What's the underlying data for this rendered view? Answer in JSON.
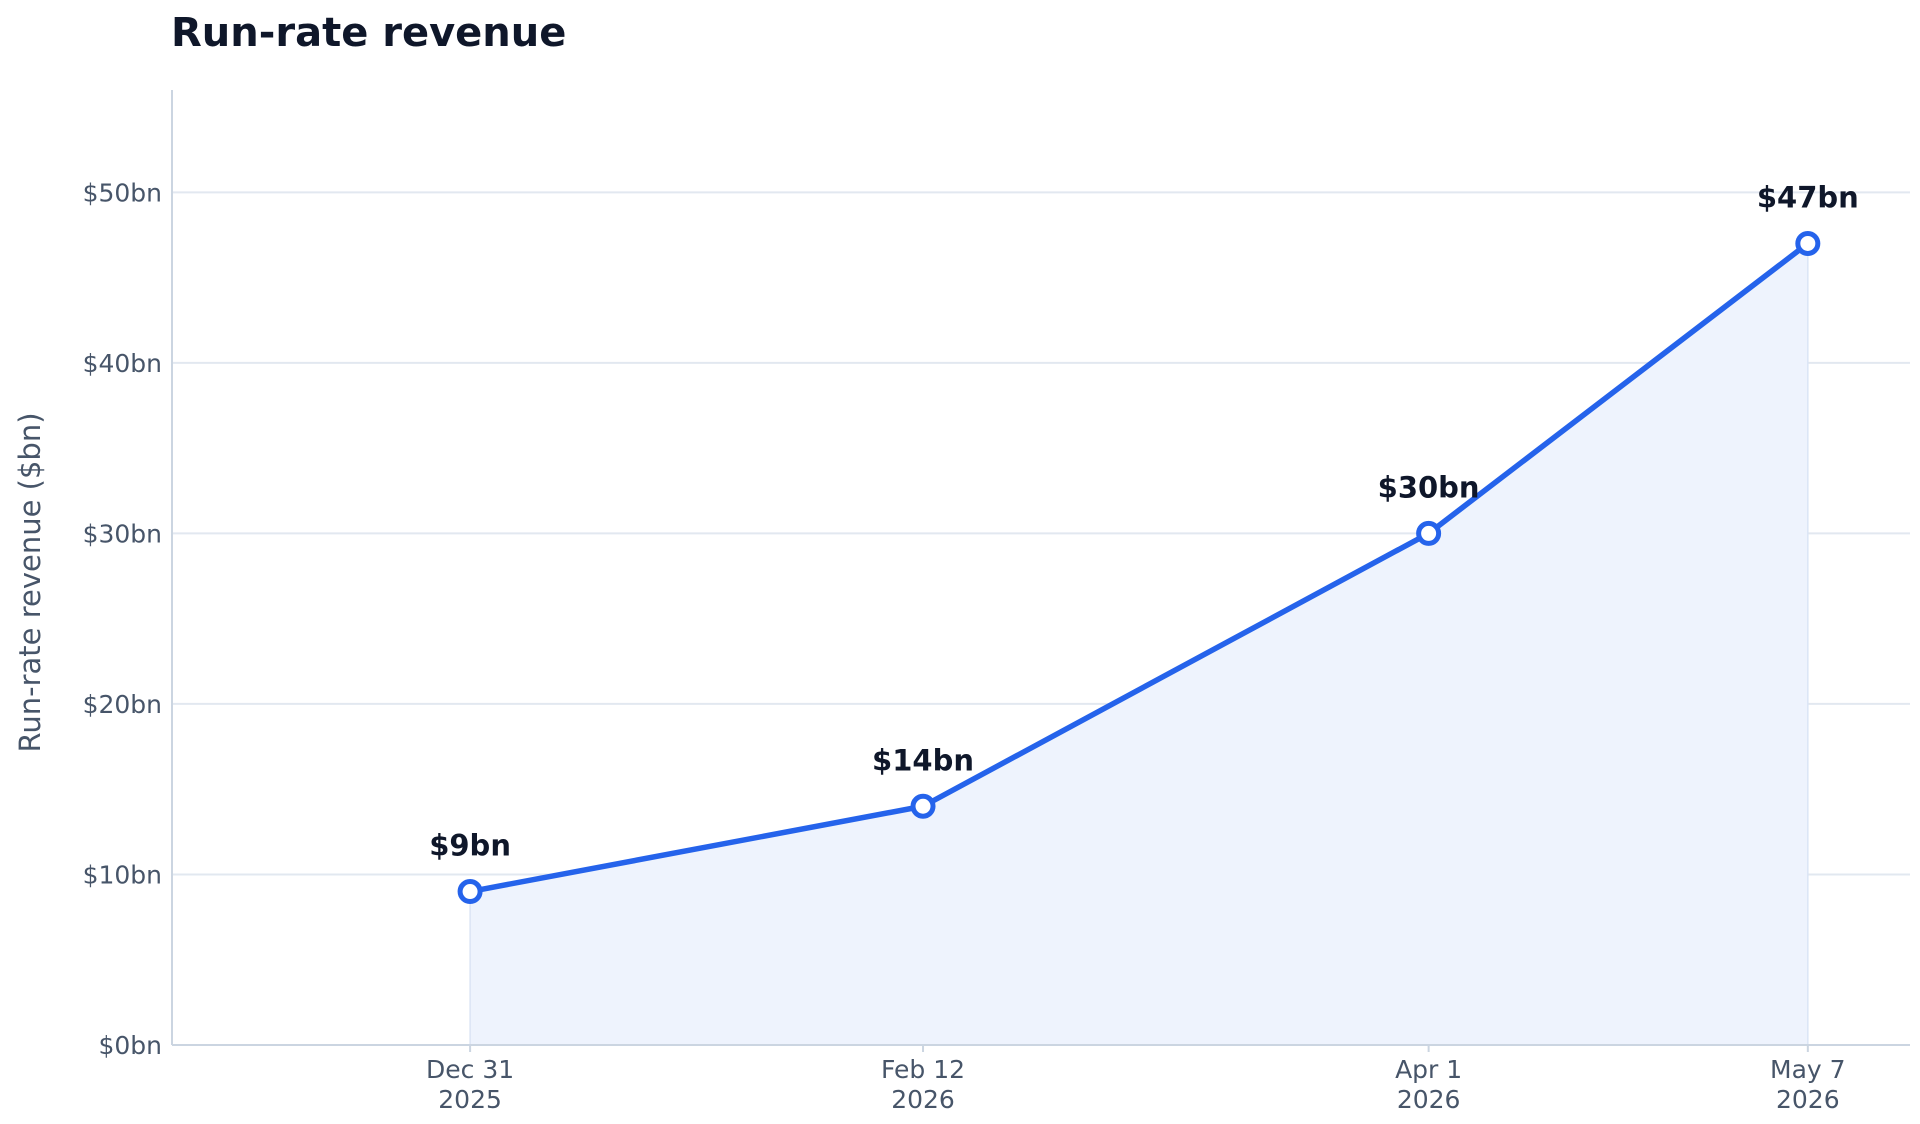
{
  "chart_data": {
    "type": "line",
    "title": "Run-rate revenue",
    "ylabel": "Run-rate revenue ($bn)",
    "xlabel": "",
    "x": [
      "2025-12-31",
      "2026-02-12",
      "2026-04-01",
      "2026-05-07"
    ],
    "x_tick_labels": [
      {
        "line1": "Dec 31",
        "line2": "2025"
      },
      {
        "line1": "Feb 12",
        "line2": "2026"
      },
      {
        "line1": "Apr 1",
        "line2": "2026"
      },
      {
        "line1": "May 7",
        "line2": "2026"
      }
    ],
    "series": [
      {
        "values": [
          9,
          14,
          30,
          47
        ],
        "color": "#2563eb",
        "fill": "#eef3fd"
      }
    ],
    "data_labels": [
      "$9bn",
      "$14bn",
      "$30bn",
      "$47bn"
    ],
    "y_ticks": [
      0,
      10,
      20,
      30,
      40,
      50
    ],
    "y_tick_labels": [
      "$0bn",
      "$10bn",
      "$20bn",
      "$30bn",
      "$40bn",
      "$50bn"
    ],
    "ylim": [
      0,
      56
    ],
    "grid": true,
    "grid_color": "#e2e8f0"
  }
}
